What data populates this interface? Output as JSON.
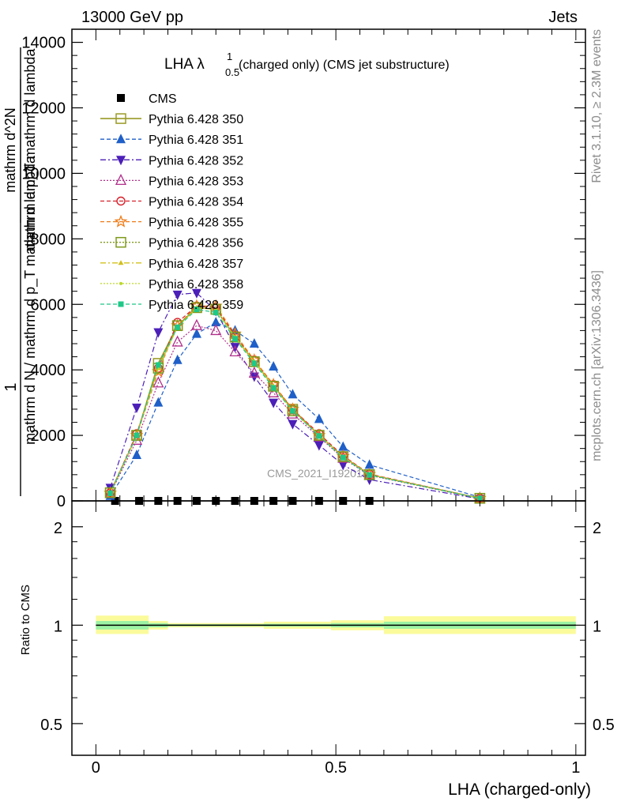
{
  "header": {
    "left": "13000 GeV pp",
    "right": "Jets"
  },
  "title": {
    "main": "LHA λ",
    "sup": "1",
    "sub": "0.5",
    "rest": "(charged only) (CMS jet substructure)"
  },
  "side_labels": {
    "rivet": "Rivet 3.1.10, ≥ 2.3M events",
    "mcplots": "mcplots.cern.ch [arXiv:1306.3436]"
  },
  "watermark": "CMS_2021_I1920187",
  "ylabel_main": {
    "numerator": "1",
    "denominator": "mathrm d N / mathrm d p_T mathrm d lambda",
    "top": "mathrm d^2N",
    "bottom": "mathrm d p_T mathrm d lambda"
  },
  "ylabel_ratio": "Ratio to CMS",
  "xlabel": "LHA (charged-only)",
  "colors": {
    "cms": "#000000",
    "s350": "#9a9a26",
    "s351": "#1f5fc8",
    "s352": "#4b1fb8",
    "s353": "#b0308c",
    "s354": "#d8202b",
    "s355": "#ee7b18",
    "s356": "#7f9a1c",
    "s357": "#d2c01c",
    "s358": "#bcd82a",
    "s359": "#1fc887",
    "band_outer": "#fbfb9c",
    "band_inner": "#9cf2a4"
  },
  "chart_data": [
    {
      "type": "line",
      "xlim": [
        -0.05,
        1.02
      ],
      "ylim": [
        0,
        14400
      ],
      "yticks": [
        0,
        2000,
        4000,
        6000,
        8000,
        10000,
        12000,
        14000
      ],
      "ytick_labels": [
        "0",
        "2000",
        "4000",
        "6000",
        "8000",
        "10000",
        "12000",
        "14000"
      ],
      "legend_placement": "top-left",
      "series": [
        {
          "name": "CMS",
          "key": "cms",
          "marker": "square-filled",
          "dash": "none",
          "x": [
            0.04,
            0.09,
            0.13,
            0.17,
            0.21,
            0.25,
            0.29,
            0.33,
            0.37,
            0.41,
            0.465,
            0.515,
            0.57
          ],
          "y": [
            0,
            0,
            0,
            0,
            0,
            0,
            0,
            0,
            0,
            0,
            0,
            0,
            0
          ]
        },
        {
          "name": "Pythia 6.428 350",
          "key": "s350",
          "marker": "square-open",
          "dash": "solid",
          "x": [
            0.03,
            0.085,
            0.13,
            0.17,
            0.21,
            0.25,
            0.29,
            0.33,
            0.37,
            0.41,
            0.465,
            0.515,
            0.57,
            0.8
          ],
          "y": [
            250,
            2000,
            4200,
            5350,
            5900,
            5850,
            5000,
            4250,
            3500,
            2800,
            2000,
            1350,
            800,
            80
          ]
        },
        {
          "name": "Pythia 6.428 351",
          "key": "s351",
          "marker": "triangle-up-filled",
          "dash": "dash",
          "x": [
            0.03,
            0.085,
            0.13,
            0.17,
            0.21,
            0.25,
            0.29,
            0.33,
            0.37,
            0.41,
            0.465,
            0.515,
            0.57,
            0.8
          ],
          "y": [
            150,
            1400,
            3000,
            4300,
            5100,
            5450,
            5200,
            4800,
            4100,
            3250,
            2500,
            1650,
            1100,
            110
          ]
        },
        {
          "name": "Pythia 6.428 352",
          "key": "s352",
          "marker": "triangle-down-filled",
          "dash": "dashdot",
          "x": [
            0.03,
            0.085,
            0.13,
            0.17,
            0.21,
            0.25,
            0.29,
            0.33,
            0.37,
            0.41,
            0.465,
            0.515,
            0.57,
            0.8
          ],
          "y": [
            400,
            2850,
            5150,
            6300,
            6350,
            5800,
            4700,
            3800,
            3000,
            2350,
            1700,
            1100,
            650,
            60
          ]
        },
        {
          "name": "Pythia 6.428 353",
          "key": "s353",
          "marker": "triangle-up-open",
          "dash": "dot",
          "x": [
            0.03,
            0.085,
            0.13,
            0.17,
            0.21,
            0.25,
            0.29,
            0.33,
            0.37,
            0.41,
            0.465,
            0.515,
            0.57,
            0.8
          ],
          "y": [
            220,
            1850,
            3600,
            4850,
            5350,
            5200,
            4550,
            3900,
            3300,
            2650,
            1950,
            1300,
            780,
            75
          ]
        },
        {
          "name": "Pythia 6.428 354",
          "key": "s354",
          "marker": "circle-open",
          "dash": "dash",
          "x": [
            0.03,
            0.085,
            0.13,
            0.17,
            0.21,
            0.25,
            0.29,
            0.33,
            0.37,
            0.41,
            0.465,
            0.515,
            0.57,
            0.8
          ],
          "y": [
            250,
            2050,
            4050,
            5450,
            5950,
            5900,
            5050,
            4300,
            3550,
            2800,
            2050,
            1380,
            820,
            82
          ]
        },
        {
          "name": "Pythia 6.428 355",
          "key": "s355",
          "marker": "star-open",
          "dash": "dash",
          "x": [
            0.03,
            0.085,
            0.13,
            0.17,
            0.21,
            0.25,
            0.29,
            0.33,
            0.37,
            0.41,
            0.465,
            0.515,
            0.57,
            0.8
          ],
          "y": [
            240,
            2000,
            3950,
            5350,
            5950,
            5950,
            5100,
            4300,
            3550,
            2800,
            2000,
            1360,
            810,
            80
          ]
        },
        {
          "name": "Pythia 6.428 356",
          "key": "s356",
          "marker": "square-open",
          "dash": "dot",
          "x": [
            0.03,
            0.085,
            0.13,
            0.17,
            0.21,
            0.25,
            0.29,
            0.33,
            0.37,
            0.41,
            0.465,
            0.515,
            0.57,
            0.8
          ],
          "y": [
            250,
            2000,
            4050,
            5350,
            5900,
            5850,
            5000,
            4250,
            3500,
            2750,
            2000,
            1350,
            800,
            78
          ]
        },
        {
          "name": "Pythia 6.428 357",
          "key": "s357",
          "marker": "small-triangle",
          "dash": "dashdot",
          "x": [
            0.03,
            0.085,
            0.13,
            0.17,
            0.21,
            0.25,
            0.29,
            0.33,
            0.37,
            0.41,
            0.465,
            0.515,
            0.57,
            0.8
          ],
          "y": [
            240,
            2000,
            4050,
            5300,
            5900,
            5850,
            5000,
            4250,
            3500,
            2750,
            2000,
            1340,
            800,
            78
          ]
        },
        {
          "name": "Pythia 6.428 358",
          "key": "s358",
          "marker": "dot",
          "dash": "dot",
          "x": [
            0.03,
            0.085,
            0.13,
            0.17,
            0.21,
            0.25,
            0.29,
            0.33,
            0.37,
            0.41,
            0.465,
            0.515,
            0.57,
            0.8
          ],
          "y": [
            240,
            2000,
            4050,
            5300,
            5900,
            5850,
            5000,
            4250,
            3500,
            2750,
            2000,
            1340,
            800,
            78
          ]
        },
        {
          "name": "Pythia 6.428 359",
          "key": "s359",
          "marker": "square-small-filled",
          "dash": "dash",
          "x": [
            0.03,
            0.085,
            0.13,
            0.17,
            0.21,
            0.25,
            0.29,
            0.33,
            0.37,
            0.41,
            0.465,
            0.515,
            0.57,
            0.8
          ],
          "y": [
            230,
            2000,
            4150,
            5300,
            5850,
            5750,
            4950,
            4200,
            3450,
            2750,
            1980,
            1320,
            790,
            76
          ]
        }
      ]
    },
    {
      "type": "line",
      "xlim": [
        -0.05,
        1.02
      ],
      "ylim": [
        0.4,
        2.4
      ],
      "yscale": "log",
      "yticks": [
        0.5,
        1,
        2
      ],
      "ytick_labels": [
        "0.5",
        "1",
        "2"
      ],
      "xticks": [
        0,
        0.5,
        1
      ],
      "xtick_labels": [
        "0",
        "0.5",
        "1"
      ],
      "reference_line": 1,
      "bands": [
        {
          "x0": 0.0,
          "x1": 0.11,
          "outer": [
            0.94,
            1.07
          ],
          "inner": [
            0.97,
            1.03
          ]
        },
        {
          "x0": 0.11,
          "x1": 0.15,
          "outer": [
            0.97,
            1.03
          ],
          "inner": [
            0.985,
            1.015
          ]
        },
        {
          "x0": 0.15,
          "x1": 0.35,
          "outer": [
            0.985,
            1.015
          ],
          "inner": [
            0.993,
            1.007
          ]
        },
        {
          "x0": 0.35,
          "x1": 0.49,
          "outer": [
            0.975,
            1.025
          ],
          "inner": [
            0.99,
            1.01
          ]
        },
        {
          "x0": 0.49,
          "x1": 0.6,
          "outer": [
            0.965,
            1.035
          ],
          "inner": [
            0.985,
            1.015
          ]
        },
        {
          "x0": 0.6,
          "x1": 1.0,
          "outer": [
            0.94,
            1.065
          ],
          "inner": [
            0.975,
            1.025
          ]
        }
      ]
    }
  ]
}
